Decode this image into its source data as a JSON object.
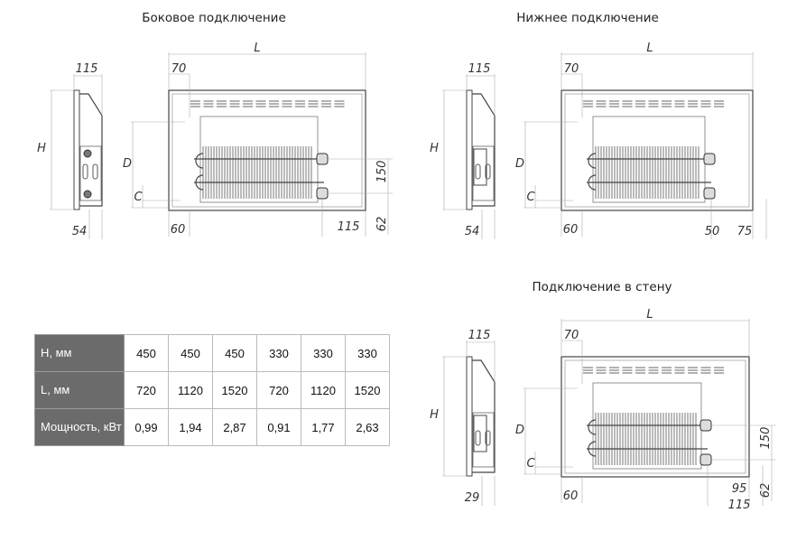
{
  "sections": [
    {
      "title": "Боковое подключение",
      "labels": {
        "side_width": "115",
        "height": "H",
        "side_bottom": "54",
        "length": "L",
        "left_offset": "70",
        "depth": "D",
        "c": "C",
        "bottom_left": "60",
        "pipe_spacing": "150",
        "bottom_right": "115",
        "bottom_height": "62"
      }
    },
    {
      "title": "Нижнее подключение",
      "labels": {
        "side_width": "115",
        "height": "H",
        "side_bottom": "54",
        "length": "L",
        "left_offset": "70",
        "depth": "D",
        "c": "C",
        "bottom_left": "60",
        "right_a": "50",
        "right_b": "75"
      }
    },
    {
      "title": "Подключение в стену",
      "labels": {
        "side_width": "115",
        "height": "H",
        "side_bottom": "29",
        "length": "L",
        "left_offset": "70",
        "depth": "D",
        "c": "C",
        "bottom_left": "60",
        "pipe_spacing": "150",
        "right_a": "95",
        "right_b": "115",
        "bottom_height": "62"
      }
    }
  ],
  "table": {
    "rows": [
      {
        "header": "H, мм",
        "values": [
          "450",
          "450",
          "450",
          "330",
          "330",
          "330"
        ]
      },
      {
        "header": "L, мм",
        "values": [
          "720",
          "1120",
          "1520",
          "720",
          "1120",
          "1520"
        ]
      },
      {
        "header": "Мощность, кВт",
        "values": [
          "0,99",
          "1,94",
          "2,87",
          "0,91",
          "1,77",
          "2,63"
        ]
      }
    ]
  }
}
